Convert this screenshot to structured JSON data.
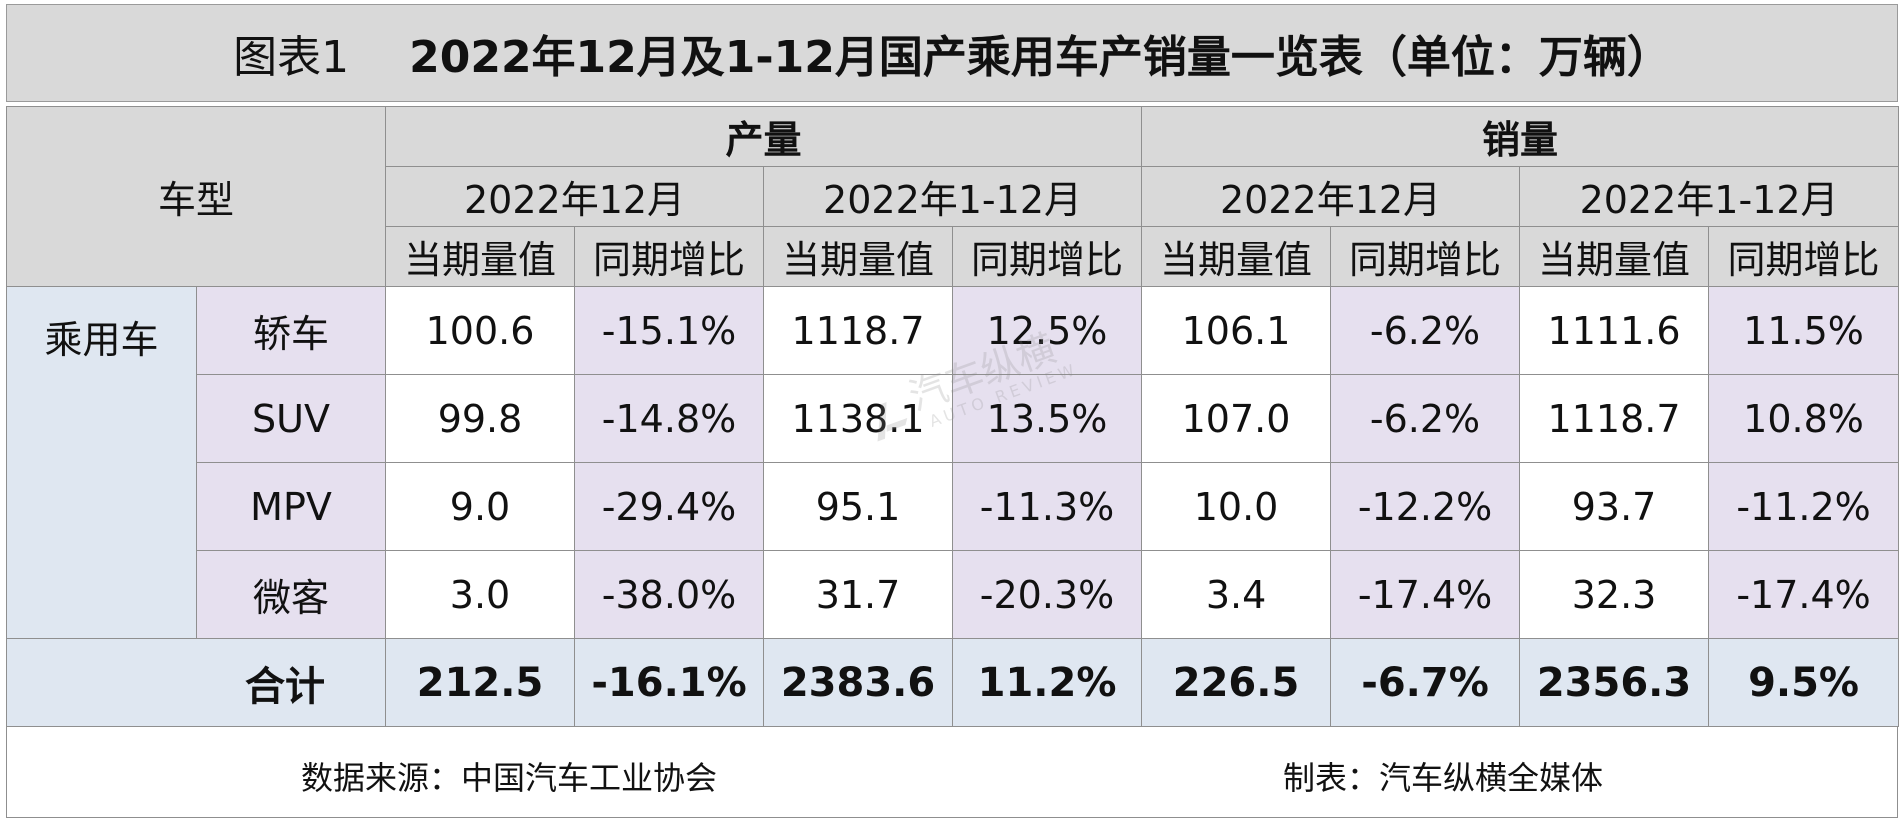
{
  "title": {
    "label": "图表1",
    "main": "2022年12月及1-12月国产乘用车产销量一览表（单位：万辆）"
  },
  "header": {
    "vehicle_type": "车型",
    "production": "产量",
    "sales": "销量",
    "period_month": "2022年12月",
    "period_ytd": "2022年1-12月",
    "value_col": "当期量值",
    "growth_col": "同期增比"
  },
  "category": "乘用车",
  "rows": [
    {
      "name": "轿车",
      "cells": [
        "100.6",
        "-15.1%",
        "1118.7",
        "12.5%",
        "106.1",
        "-6.2%",
        "1111.6",
        "11.5%"
      ]
    },
    {
      "name": "SUV",
      "cells": [
        "99.8",
        "-14.8%",
        "1138.1",
        "13.5%",
        "107.0",
        "-6.2%",
        "1118.7",
        "10.8%"
      ]
    },
    {
      "name": "MPV",
      "cells": [
        "9.0",
        "-29.4%",
        "95.1",
        "-11.3%",
        "10.0",
        "-12.2%",
        "93.7",
        "-11.2%"
      ]
    },
    {
      "name": "微客",
      "cells": [
        "3.0",
        "-38.0%",
        "31.7",
        "-20.3%",
        "3.4",
        "-17.4%",
        "32.3",
        "-17.4%"
      ]
    }
  ],
  "total": {
    "name": "合计",
    "cells": [
      "212.5",
      "-16.1%",
      "2383.6",
      "11.2%",
      "226.5",
      "-6.7%",
      "2356.3",
      "9.5%"
    ]
  },
  "footer": {
    "source": "数据来源：中国汽车工业协会",
    "maker": "制表：汽车纵横全媒体"
  },
  "watermark": {
    "cn": "汽车纵横",
    "en": "AUTO REVIEW"
  }
}
